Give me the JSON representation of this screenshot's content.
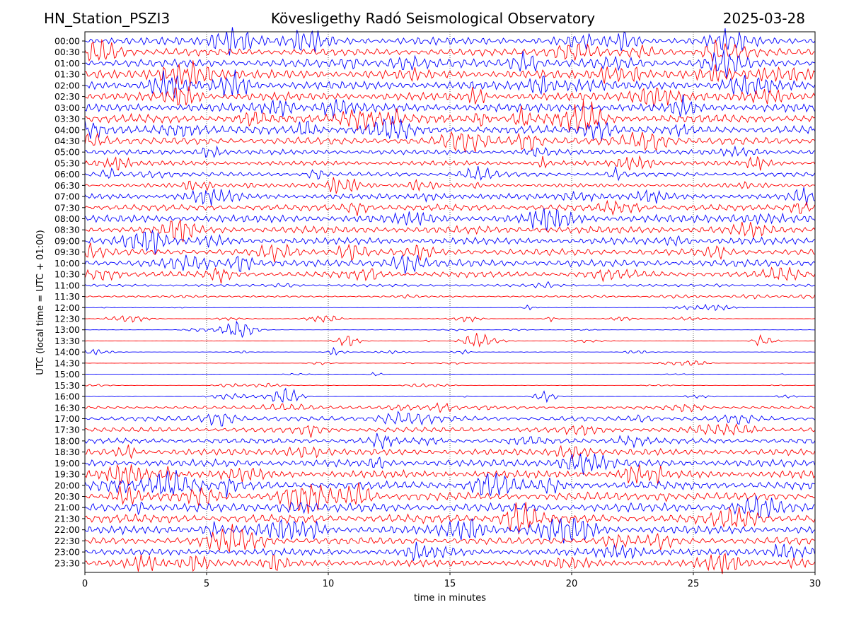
{
  "header": {
    "station": "HN_Station_PSZI3",
    "title": "Kövesligethy Radó Seismological Observatory",
    "date": "2025-03-28"
  },
  "chart_data": {
    "type": "line",
    "subtype": "helicorder",
    "xlabel": "time in minutes",
    "ylabel": "UTC (local time = UTC + 01:00)",
    "xlim": [
      0,
      30
    ],
    "xticks": [
      0,
      5,
      10,
      15,
      20,
      25,
      30
    ],
    "grid": "vertical dotted at x ticks",
    "colors": [
      "#0000ff",
      "#ff0000"
    ],
    "rows": [
      "00:00",
      "00:30",
      "01:00",
      "01:30",
      "02:00",
      "02:30",
      "03:00",
      "03:30",
      "04:00",
      "04:30",
      "05:00",
      "05:30",
      "06:00",
      "06:30",
      "07:00",
      "07:30",
      "08:00",
      "08:30",
      "09:00",
      "09:30",
      "10:00",
      "10:30",
      "11:00",
      "11:30",
      "12:00",
      "12:30",
      "13:00",
      "13:30",
      "14:00",
      "14:30",
      "15:00",
      "15:30",
      "16:00",
      "16:30",
      "17:00",
      "17:30",
      "18:00",
      "18:30",
      "19:00",
      "19:30",
      "20:00",
      "20:30",
      "21:00",
      "21:30",
      "22:00",
      "22:30",
      "23:00",
      "23:30"
    ],
    "relative_amplitude": [
      0.9,
      0.85,
      0.95,
      1.0,
      1.0,
      0.95,
      1.0,
      1.0,
      0.95,
      0.85,
      0.6,
      0.55,
      0.5,
      0.45,
      0.65,
      0.75,
      0.9,
      0.85,
      0.8,
      0.75,
      0.85,
      0.7,
      0.3,
      0.2,
      0.08,
      0.12,
      0.08,
      0.1,
      0.1,
      0.08,
      0.06,
      0.08,
      0.15,
      0.35,
      0.55,
      0.6,
      0.65,
      0.75,
      0.85,
      0.9,
      0.95,
      0.95,
      1.0,
      1.0,
      0.95,
      0.85,
      0.8,
      0.8
    ]
  }
}
